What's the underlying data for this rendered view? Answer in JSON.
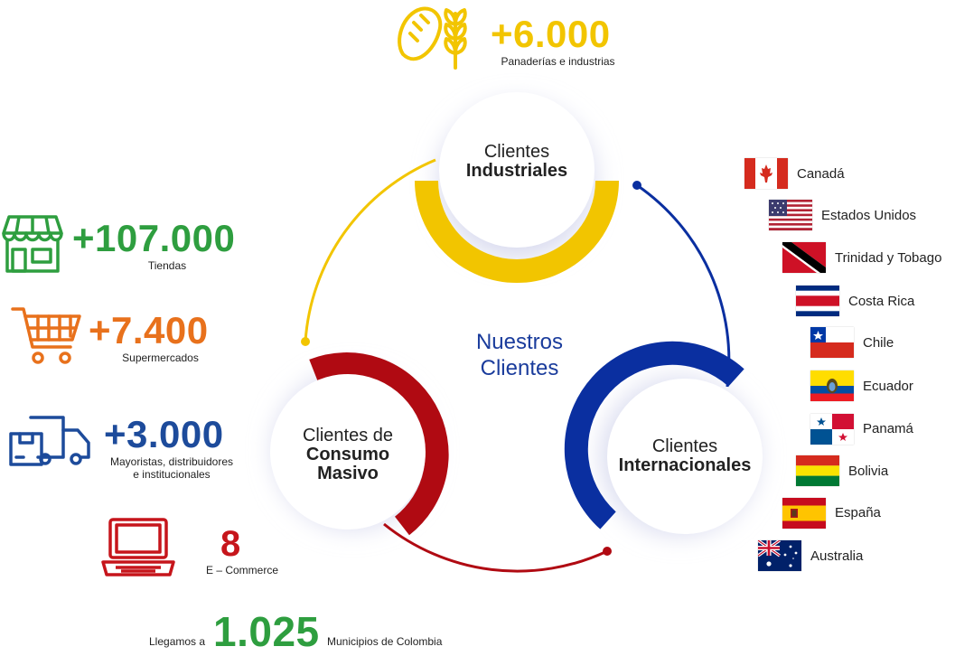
{
  "colors": {
    "industrial": "#f2c500",
    "consumo": "#b00a12",
    "internacional": "#0a2fa0",
    "green": "#2e9e3f",
    "orange": "#e8711c",
    "blue": "#1d4b9b",
    "red": "#c6151b"
  },
  "center_title": {
    "line1": "Nuestros",
    "line2": "Clientes"
  },
  "circles": {
    "industrial": {
      "line1": "Clientes",
      "line2": "Industriales"
    },
    "consumo": {
      "line1": "Clientes de",
      "line2": "Consumo",
      "line3": "Masivo"
    },
    "internacional": {
      "line1": "Clientes",
      "line2": "Internacionales"
    }
  },
  "industrial_stat": {
    "value": "+6.000",
    "label": "Panaderías e industrias",
    "icon": "bread-wheat-icon"
  },
  "consumo_stats": [
    {
      "value": "+107.000",
      "label": "Tiendas",
      "icon": "store-icon"
    },
    {
      "value": "+7.400",
      "label": "Supermercados",
      "icon": "shopping-cart-icon"
    },
    {
      "value": "+3.000",
      "label_line1": "Mayoristas, distribuidores",
      "label_line2": "e institucionales",
      "icon": "delivery-truck-icon"
    },
    {
      "value": "8",
      "label": "E – Commerce",
      "icon": "laptop-icon"
    }
  ],
  "municipios": {
    "prefix": "Llegamos a",
    "value": "1.025",
    "suffix": "Municipios de Colombia"
  },
  "countries": [
    {
      "name": "Canadá",
      "flag": "canada-flag"
    },
    {
      "name": "Estados Unidos",
      "flag": "usa-flag"
    },
    {
      "name": "Trinidad y Tobago",
      "flag": "trinidad-tobago-flag"
    },
    {
      "name": "Costa Rica",
      "flag": "costa-rica-flag"
    },
    {
      "name": "Chile",
      "flag": "chile-flag"
    },
    {
      "name": "Ecuador",
      "flag": "ecuador-flag"
    },
    {
      "name": "Panamá",
      "flag": "panama-flag"
    },
    {
      "name": "Bolivia",
      "flag": "bolivia-flag"
    },
    {
      "name": "España",
      "flag": "spain-flag"
    },
    {
      "name": "Australia",
      "flag": "australia-flag"
    }
  ]
}
